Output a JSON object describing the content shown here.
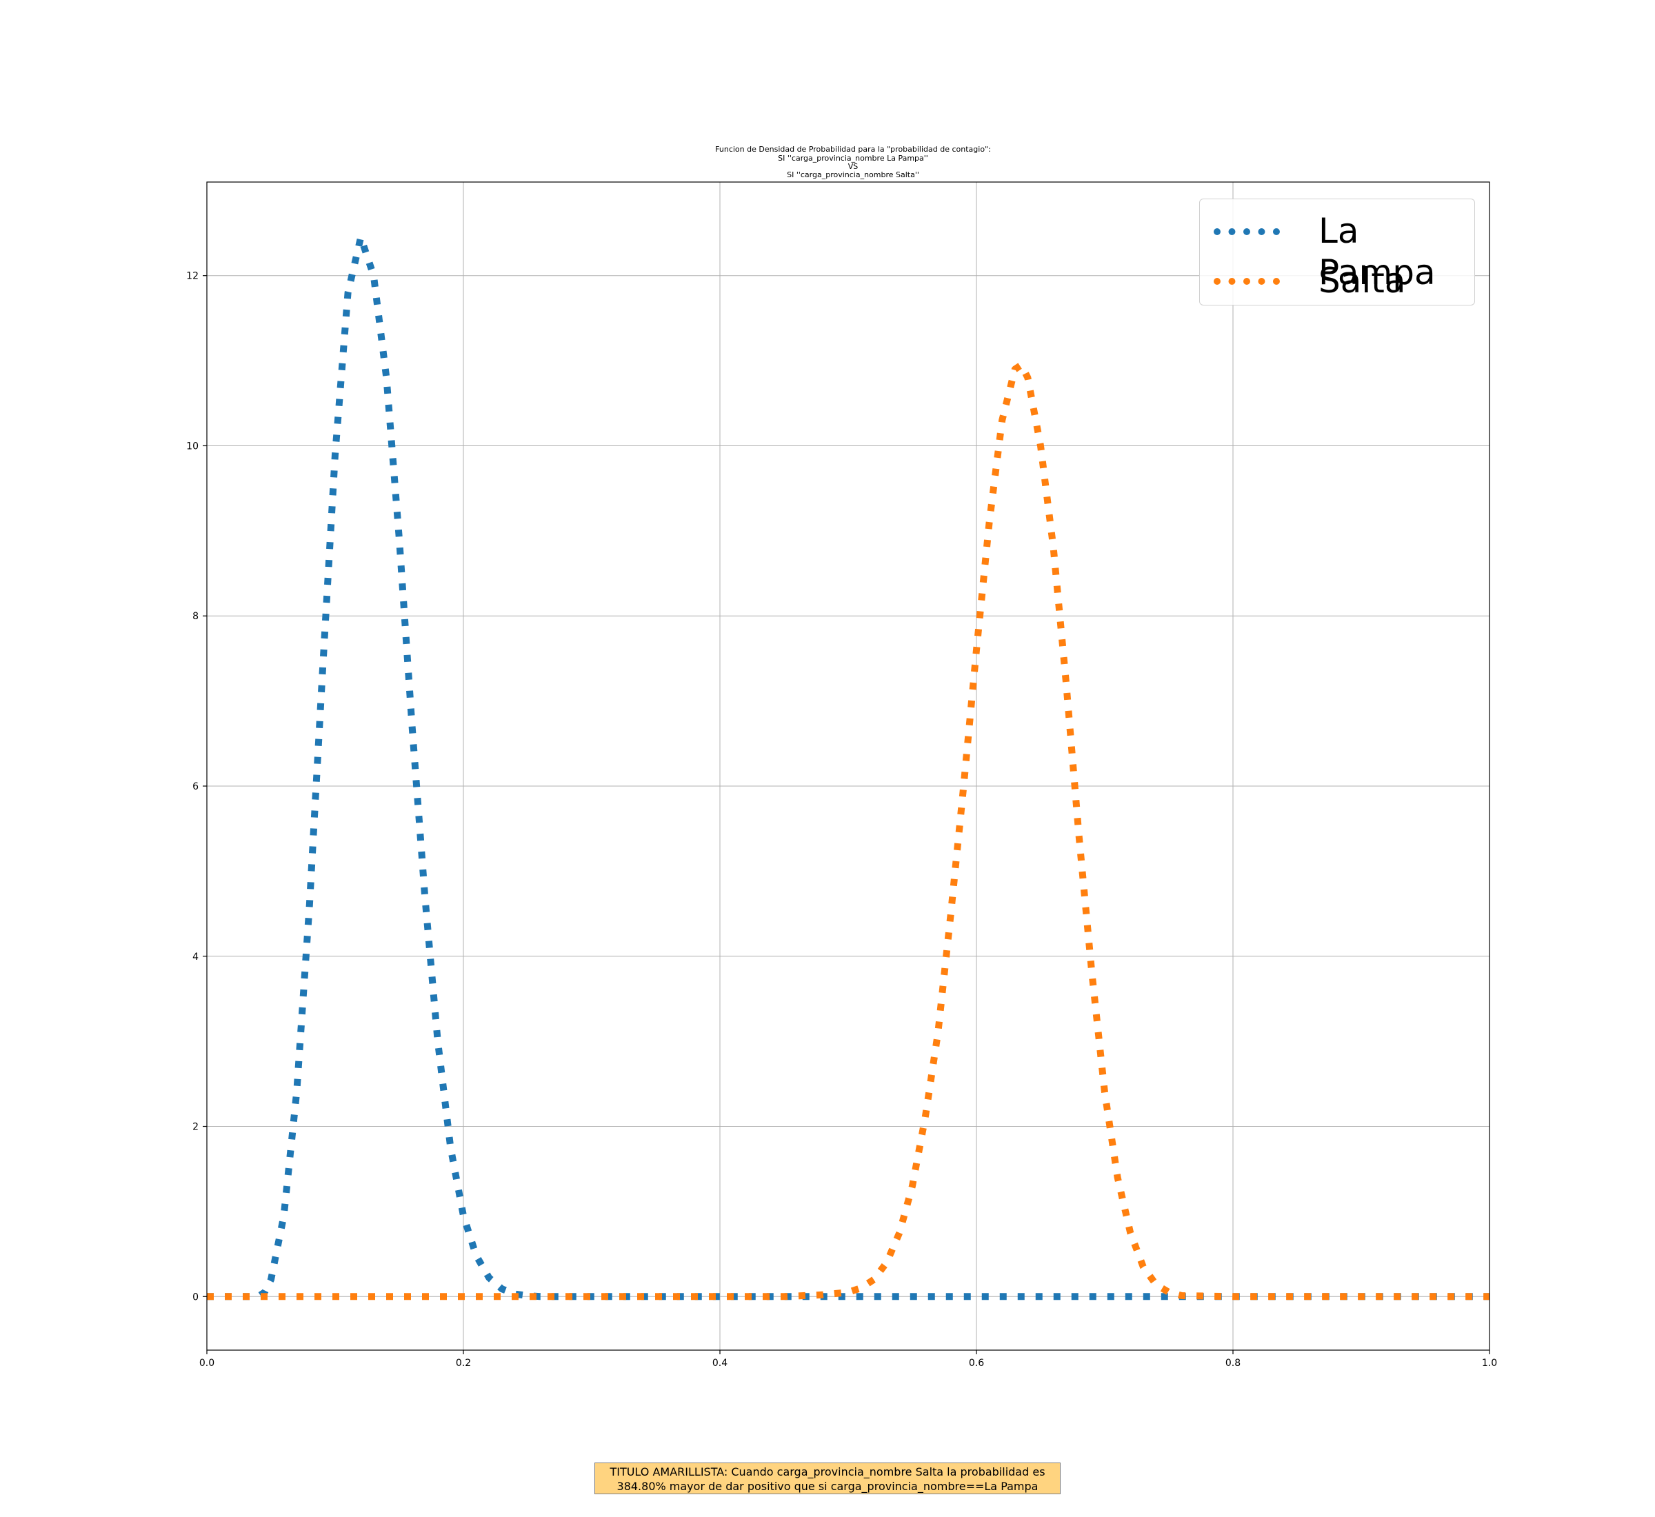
{
  "chart_data": {
    "type": "line",
    "title_lines": [
      "Funcion de Densidad de Probabilidad para la \"probabilidad de contagio\":",
      "SI ''carga_provincia_nombre La Pampa''",
      "VS",
      "SI ''carga_provincia_nombre Salta''"
    ],
    "xlabel": "",
    "ylabel": "",
    "xlim": [
      0.0,
      1.0
    ],
    "ylim": [
      -0.63,
      13.1
    ],
    "x_ticks": [
      "0.0",
      "0.2",
      "0.4",
      "0.6",
      "0.8",
      "1.0"
    ],
    "y_ticks": [
      "0",
      "2",
      "4",
      "6",
      "8",
      "10",
      "12"
    ],
    "grid": true,
    "legend_position": "top-right",
    "series": [
      {
        "name": "La Pampa",
        "color": "#1f77b4",
        "linestyle": "dotted",
        "x": [
          0.0,
          0.02,
          0.04,
          0.045,
          0.05,
          0.06,
          0.07,
          0.08,
          0.09,
          0.1,
          0.11,
          0.12,
          0.13,
          0.14,
          0.15,
          0.16,
          0.17,
          0.18,
          0.19,
          0.2,
          0.21,
          0.22,
          0.23,
          0.24,
          0.25,
          0.26,
          0.28,
          0.3,
          0.4,
          0.5,
          0.6,
          0.7,
          0.8,
          0.9,
          1.0
        ],
        "y": [
          0.0,
          0.0,
          0.0,
          0.05,
          0.2,
          0.95,
          2.4,
          4.6,
          7.3,
          9.9,
          11.8,
          12.45,
          12.0,
          10.8,
          8.9,
          6.7,
          4.7,
          3.0,
          1.75,
          0.95,
          0.48,
          0.22,
          0.09,
          0.03,
          0.01,
          0.0,
          0.0,
          0.0,
          0.0,
          0.0,
          0.0,
          0.0,
          0.0,
          0.0,
          0.0
        ]
      },
      {
        "name": "Salta",
        "color": "#ff7f0e",
        "linestyle": "dotted",
        "x": [
          0.0,
          0.1,
          0.2,
          0.3,
          0.4,
          0.45,
          0.48,
          0.5,
          0.51,
          0.52,
          0.53,
          0.54,
          0.55,
          0.56,
          0.57,
          0.58,
          0.59,
          0.6,
          0.61,
          0.62,
          0.63,
          0.635,
          0.64,
          0.65,
          0.66,
          0.67,
          0.68,
          0.69,
          0.7,
          0.71,
          0.72,
          0.73,
          0.74,
          0.75,
          0.76,
          0.8,
          0.9,
          1.0
        ],
        "y": [
          0.0,
          0.0,
          0.0,
          0.0,
          0.0,
          0.0,
          0.02,
          0.05,
          0.1,
          0.2,
          0.4,
          0.75,
          1.3,
          2.1,
          3.1,
          4.5,
          6.0,
          7.6,
          9.1,
          10.3,
          10.9,
          10.95,
          10.8,
          10.0,
          8.8,
          7.2,
          5.4,
          3.8,
          2.4,
          1.4,
          0.75,
          0.35,
          0.14,
          0.05,
          0.01,
          0.0,
          0.0,
          0.0
        ]
      }
    ]
  },
  "footnote_lines": [
    "TITULO AMARILLISTA: Cuando carga_provincia_nombre Salta la probabilidad es",
    "384.80% mayor de dar positivo que si carga_provincia_nombre==La Pampa"
  ]
}
